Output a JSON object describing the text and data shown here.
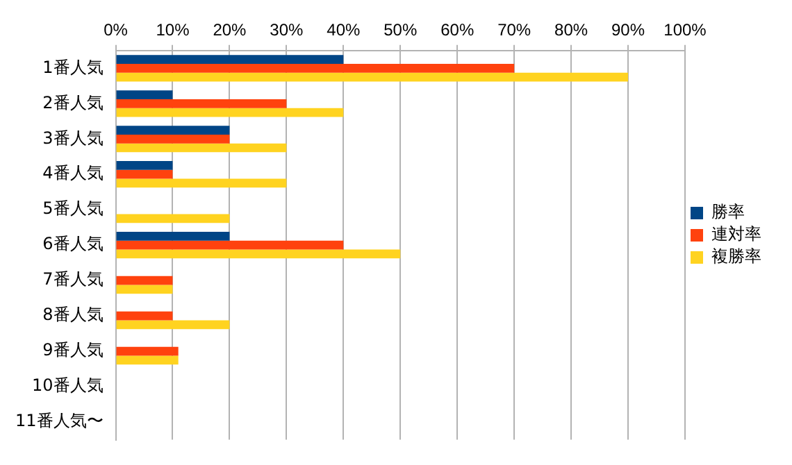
{
  "chart_data": {
    "type": "bar",
    "orientation": "horizontal",
    "categories": [
      "1番人気",
      "2番人気",
      "3番人気",
      "4番人気",
      "5番人気",
      "6番人気",
      "7番人気",
      "8番人気",
      "9番人気",
      "10番人気",
      "11番人気〜"
    ],
    "series": [
      {
        "name": "勝率",
        "color": "#004586",
        "values": [
          40,
          10,
          20,
          10,
          0,
          20,
          0,
          0,
          0,
          0,
          0
        ]
      },
      {
        "name": "連対率",
        "color": "#ff420e",
        "values": [
          70,
          30,
          20,
          10,
          0,
          40,
          10,
          10,
          11,
          0,
          0
        ]
      },
      {
        "name": "複勝率",
        "color": "#ffd320",
        "values": [
          90,
          40,
          30,
          30,
          20,
          50,
          10,
          20,
          11,
          0,
          0
        ]
      }
    ],
    "xlim": [
      0,
      100
    ],
    "xticks": [
      {
        "value": 0,
        "label": "0%"
      },
      {
        "value": 10,
        "label": "10%"
      },
      {
        "value": 20,
        "label": "20%"
      },
      {
        "value": 30,
        "label": "30%"
      },
      {
        "value": 40,
        "label": "40%"
      },
      {
        "value": 50,
        "label": "50%"
      },
      {
        "value": 60,
        "label": "60%"
      },
      {
        "value": 70,
        "label": "70%"
      },
      {
        "value": 80,
        "label": "80%"
      },
      {
        "value": 90,
        "label": "90%"
      },
      {
        "value": 100,
        "label": "100%"
      }
    ],
    "grid": "x",
    "legend": "right"
  }
}
